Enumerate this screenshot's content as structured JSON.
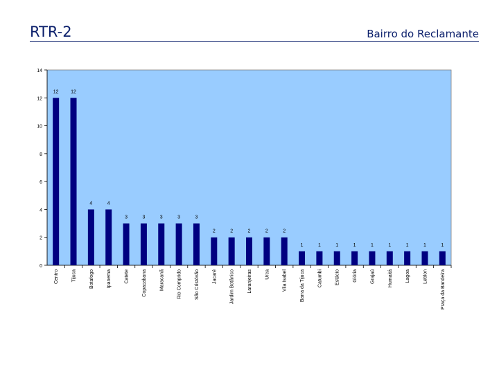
{
  "header": {
    "title": "RTR-2",
    "subtitle": "Bairro do Reclamante"
  },
  "colors": {
    "plot_background": "#99ccff",
    "bar": "#000080",
    "title": "#0b1f6b"
  },
  "chart_data": {
    "type": "bar",
    "title": "",
    "xlabel": "",
    "ylabel": "",
    "ylim": [
      0,
      14
    ],
    "yticks": [
      0,
      2,
      4,
      6,
      8,
      10,
      12,
      14
    ],
    "grid": false,
    "legend": "none",
    "data_labels": true,
    "categories": [
      "Centro",
      "Tijuca",
      "Botafogo",
      "Ipanema",
      "Catete",
      "Copacabana",
      "Maracanã",
      "Rio Comprido",
      "São Cristóvão",
      "Jacaré",
      "Jardim Botânico",
      "Laranjeiras",
      "Urca",
      "Vila Isabel",
      "Barra da Tijuca",
      "Catumbi",
      "Estácio",
      "Glória",
      "Grajaú",
      "Humaitá",
      "Lagoa",
      "Leblon",
      "Praça da Bandeira"
    ],
    "values": [
      12,
      12,
      4,
      4,
      3,
      3,
      3,
      3,
      3,
      2,
      2,
      2,
      2,
      2,
      1,
      1,
      1,
      1,
      1,
      1,
      1,
      1,
      1
    ]
  }
}
